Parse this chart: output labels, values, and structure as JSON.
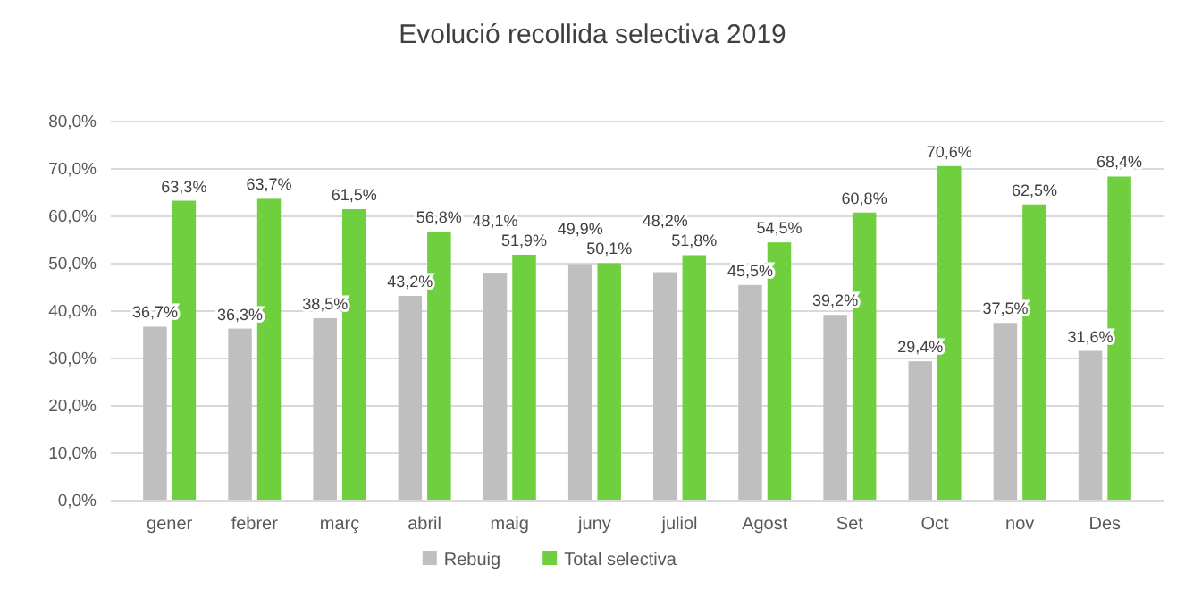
{
  "chart_data": {
    "type": "bar",
    "title": "Evolució recollida selectiva 2019",
    "categories": [
      "gener",
      "febrer",
      "març",
      "abril",
      "maig",
      "juny",
      "juliol",
      "Agost",
      "Set",
      "Oct",
      "nov",
      "Des"
    ],
    "series": [
      {
        "name": "Rebuig",
        "color": "#bfbfbf",
        "values": [
          36.7,
          36.3,
          38.5,
          43.2,
          48.1,
          49.9,
          48.2,
          45.5,
          39.2,
          29.4,
          37.5,
          31.6
        ],
        "value_labels": [
          "36,7%",
          "36,3%",
          "38,5%",
          "43,2%",
          "48,1%",
          "49,9%",
          "48,2%",
          "45,5%",
          "39,2%",
          "29,4%",
          "37,5%",
          "31,6%"
        ]
      },
      {
        "name": "Total selectiva",
        "color": "#6fcf3f",
        "values": [
          63.3,
          63.7,
          61.5,
          56.8,
          51.9,
          50.1,
          51.8,
          54.5,
          60.8,
          70.6,
          62.5,
          68.4
        ],
        "value_labels": [
          "63,3%",
          "63,7%",
          "61,5%",
          "56,8%",
          "51,9%",
          "50,1%",
          "51,8%",
          "54,5%",
          "60,8%",
          "70,6%",
          "62,5%",
          "68,4%"
        ]
      }
    ],
    "ylim": [
      0,
      80
    ],
    "yticks": [
      {
        "value": 0,
        "label": "0,0%"
      },
      {
        "value": 10,
        "label": "10,0%"
      },
      {
        "value": 20,
        "label": "20,0%"
      },
      {
        "value": 30,
        "label": "30,0%"
      },
      {
        "value": 40,
        "label": "40,0%"
      },
      {
        "value": 50,
        "label": "50,0%"
      },
      {
        "value": 60,
        "label": "60,0%"
      },
      {
        "value": 70,
        "label": "70,0%"
      },
      {
        "value": 80,
        "label": "80,0%"
      }
    ],
    "grid": "y",
    "legend": "bottom"
  }
}
